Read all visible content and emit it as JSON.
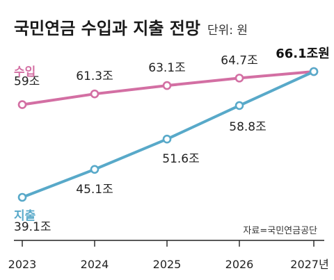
{
  "title": "국민연금 수입과 지출 전망",
  "subtitle": "단위: 원",
  "source": "자료=국민연금공단",
  "chart_data": {
    "type": "line",
    "categories": [
      "2023",
      "2024",
      "2025",
      "2026",
      "2027"
    ],
    "x_tick_labels": [
      "2023",
      "2024",
      "2025",
      "2026",
      "2027년"
    ],
    "y_unit": "조원",
    "grid": false,
    "series": [
      {
        "name": "수입",
        "color": "#d36fa3",
        "values": [
          59,
          61.3,
          63.1,
          64.7,
          66.1
        ],
        "labels": [
          "59조",
          "61.3조",
          "63.1조",
          "64.7조",
          "66.1조원"
        ]
      },
      {
        "name": "지출",
        "color": "#58a9c9",
        "values": [
          39.1,
          45.1,
          51.6,
          58.8,
          66.1
        ],
        "labels": [
          "39.1조",
          "45.1조",
          "51.6조",
          "58.8조",
          ""
        ]
      }
    ]
  }
}
